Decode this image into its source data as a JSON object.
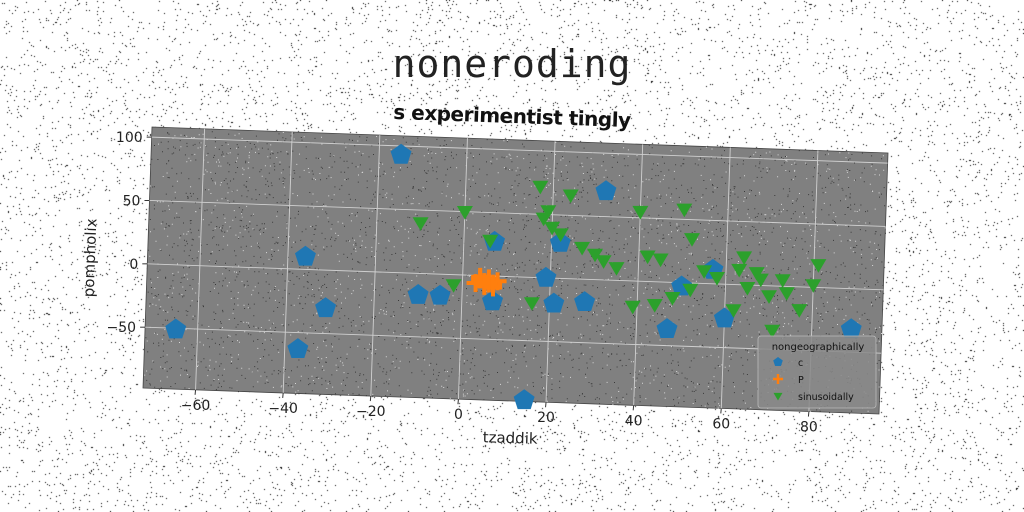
{
  "page": {
    "heading": "noneroding"
  },
  "chart_data": {
    "type": "scatter",
    "title": "s experimentist tingly",
    "xlabel": "tzaddik",
    "ylabel": "pompholix",
    "xlim": [
      -72,
      96
    ],
    "ylim": [
      -98,
      108
    ],
    "xticks": [
      -60,
      -40,
      -20,
      0,
      20,
      40,
      60,
      80
    ],
    "yticks": [
      -50,
      0,
      50,
      100
    ],
    "grid": true,
    "legend": {
      "title": "nongeographically",
      "placement": "bottom-right"
    },
    "series": [
      {
        "name": "c",
        "color": "#1f77b4",
        "marker": "pentagon",
        "points": [
          [
            -15,
            93
          ],
          [
            -36,
            10
          ],
          [
            -65,
            -51
          ],
          [
            -37,
            -63
          ],
          [
            -31,
            -30
          ],
          [
            -10,
            -17
          ],
          [
            -5,
            -17
          ],
          [
            7,
            27
          ],
          [
            7,
            -20
          ],
          [
            15,
            -97
          ],
          [
            19,
            0
          ],
          [
            21,
            -20
          ],
          [
            22,
            28
          ],
          [
            28,
            -18
          ],
          [
            32,
            70
          ],
          [
            47,
            -37
          ],
          [
            50,
            -3
          ],
          [
            57,
            11
          ],
          [
            60,
            -27
          ],
          [
            89,
            -32
          ]
        ]
      },
      {
        "name": "P",
        "color": "#ff7f0e",
        "marker": "plus",
        "points": [
          [
            3,
            -6
          ],
          [
            4,
            -3
          ],
          [
            5,
            -5
          ],
          [
            6,
            -2
          ],
          [
            7,
            -6
          ],
          [
            8,
            -4
          ],
          [
            5,
            -8
          ],
          [
            4,
            -1
          ],
          [
            7,
            -9
          ],
          [
            6,
            -6
          ]
        ]
      },
      {
        "name": "sinusoidally",
        "color": "#2ca02c",
        "marker": "triangle-down",
        "points": [
          [
            -10,
            40
          ],
          [
            -2,
            -8
          ],
          [
            0,
            50
          ],
          [
            6,
            28
          ],
          [
            16,
            -20
          ],
          [
            17,
            72
          ],
          [
            18,
            47
          ],
          [
            19,
            53
          ],
          [
            20,
            40
          ],
          [
            22,
            35
          ],
          [
            24,
            66
          ],
          [
            27,
            25
          ],
          [
            30,
            20
          ],
          [
            32,
            15
          ],
          [
            35,
            10
          ],
          [
            39,
            -20
          ],
          [
            40,
            55
          ],
          [
            42,
            20
          ],
          [
            44,
            -18
          ],
          [
            45,
            18
          ],
          [
            48,
            -12
          ],
          [
            50,
            58
          ],
          [
            52,
            -5
          ],
          [
            52,
            35
          ],
          [
            55,
            10
          ],
          [
            58,
            5
          ],
          [
            62,
            -20
          ],
          [
            63,
            12
          ],
          [
            64,
            22
          ],
          [
            65,
            -2
          ],
          [
            67,
            10
          ],
          [
            68,
            5
          ],
          [
            70,
            -8
          ],
          [
            71,
            -35
          ],
          [
            73,
            5
          ],
          [
            74,
            -5
          ],
          [
            77,
            -18
          ],
          [
            80,
            2
          ],
          [
            81,
            18
          ]
        ]
      }
    ]
  }
}
